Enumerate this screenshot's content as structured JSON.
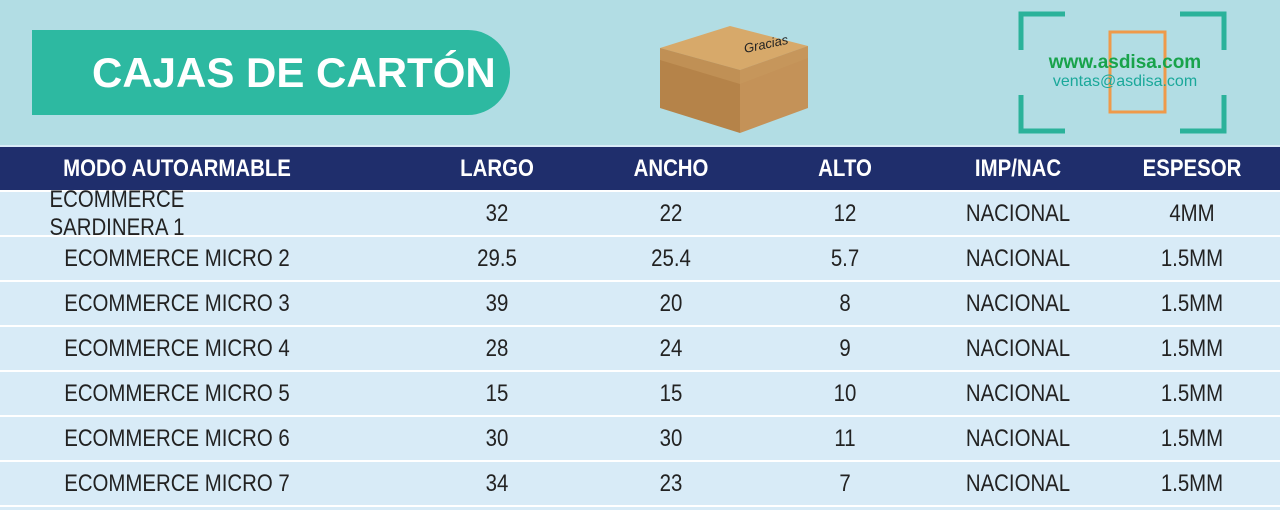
{
  "header": {
    "title": "CAJAS DE CARTÓN",
    "website": "www.asdisa.com",
    "email": "ventas@asdisa.com"
  },
  "table": {
    "columns": [
      "MODO AUTOARMABLE",
      "LARGO",
      "ANCHO",
      "ALTO",
      "IMP/NAC",
      "ESPESOR"
    ],
    "rows": [
      [
        "ECOMMERCE SARDINERA 1",
        "32",
        "22",
        "12",
        "NACIONAL",
        "4MM"
      ],
      [
        "ECOMMERCE MICRO 2",
        "29.5",
        "25.4",
        "5.7",
        "NACIONAL",
        "1.5MM"
      ],
      [
        "ECOMMERCE MICRO 3",
        "39",
        "20",
        "8",
        "NACIONAL",
        "1.5MM"
      ],
      [
        "ECOMMERCE MICRO 4",
        "28",
        "24",
        "9",
        "NACIONAL",
        "1.5MM"
      ],
      [
        "ECOMMERCE MICRO 5",
        "15",
        "15",
        "10",
        "NACIONAL",
        "1.5MM"
      ],
      [
        "ECOMMERCE MICRO 6",
        "30",
        "30",
        "11",
        "NACIONAL",
        "1.5MM"
      ],
      [
        "ECOMMERCE MICRO 7",
        "34",
        "23",
        "7",
        "NACIONAL",
        "1.5MM"
      ]
    ]
  }
}
